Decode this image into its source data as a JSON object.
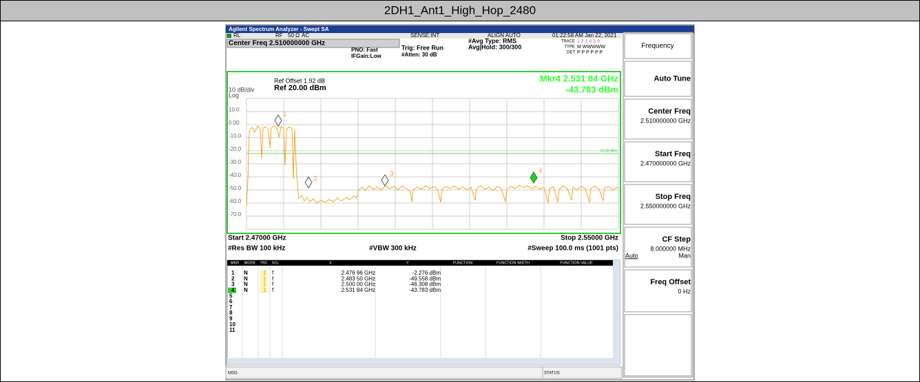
{
  "title": "2DH1_Ant1_High_Hop_2480",
  "window_title": "Agilent Spectrum Analyzer - Swept SA",
  "status_bar": {
    "rl": "RL",
    "rf": "RF",
    "impedance": "50 Ω",
    "coupling": "AC",
    "sense": "SENSE:INT",
    "align": "ALIGN AUTO",
    "time": "01:22:58 AM Jan 22, 2021"
  },
  "header": {
    "center_freq": "Center Freq 2.510000000 GHz",
    "pno": "PNO: Fast",
    "ifgain": "IFGain:Low",
    "trig": "Trig: Free Run",
    "atten": "#Atten: 30 dB",
    "avg_type": "#Avg Type: RMS",
    "avg_hold": "Avg|Hold: 300/300",
    "trace_label": "TRACE",
    "trace_val": "1 2 3 4 5 6",
    "type_label": "TYPE",
    "type_val": "M WWWWW",
    "det_label": "DET",
    "det_val": "P P P P P P"
  },
  "plot": {
    "ref_offset": "Ref Offset 1.92 dB",
    "scale": "10 dB/div",
    "ref": "Ref 20.00 dBm",
    "log": "Log",
    "marker_freq": "Mkr4 2.531 84 GHz",
    "marker_amp": "-43.783 dBm",
    "y_labels": [
      "10.0",
      "0.00",
      "-10.0",
      "-20.0",
      "-30.0",
      "-40.0",
      "-50.0",
      "-60.0",
      "-70.0"
    ],
    "limit_label": "-22.28 dBm",
    "marker_labels": [
      "1",
      "2",
      "3",
      "4"
    ],
    "start": "Start 2.47000 GHz",
    "stop": "Stop 2.55000 GHz",
    "rbw": "#Res BW 100 kHz",
    "vbw": "#VBW 300 kHz",
    "sweep": "#Sweep  100.0 ms (1001 pts)"
  },
  "table": {
    "headers": [
      "MKR",
      "MODE",
      "TRC",
      "SCL",
      "X",
      "Y",
      "FUNCTION",
      "FUNCTION WIDTH",
      "FUNCTION VALUE"
    ],
    "rows": [
      [
        "1",
        "N",
        "1",
        "f",
        "2.476 96 GHz",
        "-2.276 dBm"
      ],
      [
        "2",
        "N",
        "1",
        "f",
        "2.483 50 GHz",
        "-49.558 dBm"
      ],
      [
        "3",
        "N",
        "1",
        "f",
        "2.500 00 GHz",
        "-46.308 dBm"
      ],
      [
        "4",
        "N",
        "1",
        "f",
        "2.531 84 GHz",
        "-43.783 dBm"
      ]
    ],
    "empty_rows": [
      "5",
      "6",
      "7",
      "8",
      "9",
      "10",
      "11"
    ]
  },
  "softkeys": [
    {
      "label": "Frequency"
    },
    {
      "label": "Auto Tune"
    },
    {
      "label": "Center Freq",
      "value": "2.510000000 GHz"
    },
    {
      "label": "Start Freq",
      "value": "2.470000000 GHz"
    },
    {
      "label": "Stop Freq",
      "value": "2.550000000 GHz"
    },
    {
      "label": "CF Step",
      "value": "8.000000 MHz",
      "auto": "Auto",
      "man": "Man"
    },
    {
      "label": "Freq Offset",
      "value": "0 Hz"
    }
  ],
  "footer": {
    "msg": "MSG",
    "status": "STATUS"
  }
}
